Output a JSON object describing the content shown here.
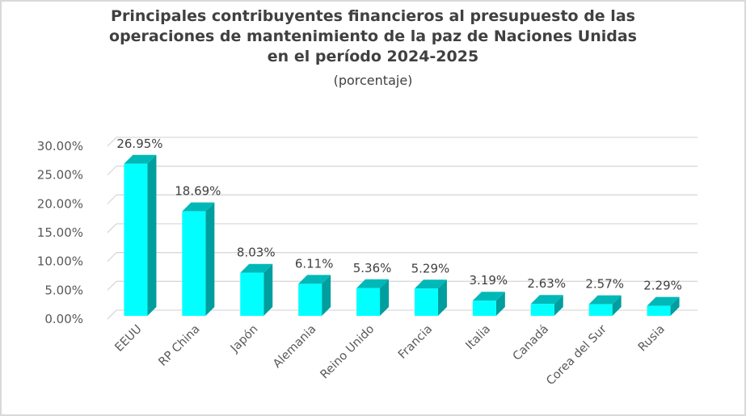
{
  "chart_data": {
    "type": "bar",
    "style": "3d-column",
    "title": "Principales contribuyentes financieros al presupuesto de las operaciones de mantenimiento de la paz de Naciones Unidas en el período 2024-2025",
    "title_lines": [
      "Principales contribuyentes financieros al presupuesto de las",
      "operaciones de mantenimiento de la paz de Naciones Unidas",
      "en el período 2024-2025"
    ],
    "subtitle": "(porcentaje)",
    "xlabel": "",
    "ylabel": "",
    "categories": [
      "EEUU",
      "RP China",
      "Japón",
      "Alemania",
      "Reino Unido",
      "Francia",
      "Italia",
      "Canadá",
      "Corea del Sur",
      "Rusia"
    ],
    "values": [
      26.95,
      18.69,
      8.03,
      6.11,
      5.36,
      5.29,
      3.19,
      2.63,
      2.57,
      2.29
    ],
    "data_labels": [
      "26.95%",
      "18.69%",
      "8.03%",
      "6.11%",
      "5.36%",
      "5.29%",
      "3.19%",
      "2.63%",
      "2.57%",
      "2.29%"
    ],
    "ylim": [
      0,
      30
    ],
    "yticks": [
      0,
      5,
      10,
      15,
      20,
      25,
      30
    ],
    "ytick_labels": [
      "0.00%",
      "5.00%",
      "10.00%",
      "15.00%",
      "20.00%",
      "25.00%",
      "30.00%"
    ],
    "grid": true,
    "legend": "none",
    "colors": {
      "bar_front": "#00ffff",
      "bar_top": "#00b8b8",
      "bar_side": "#009e9e",
      "grid": "#d9d9d9",
      "text": "#404040"
    }
  }
}
